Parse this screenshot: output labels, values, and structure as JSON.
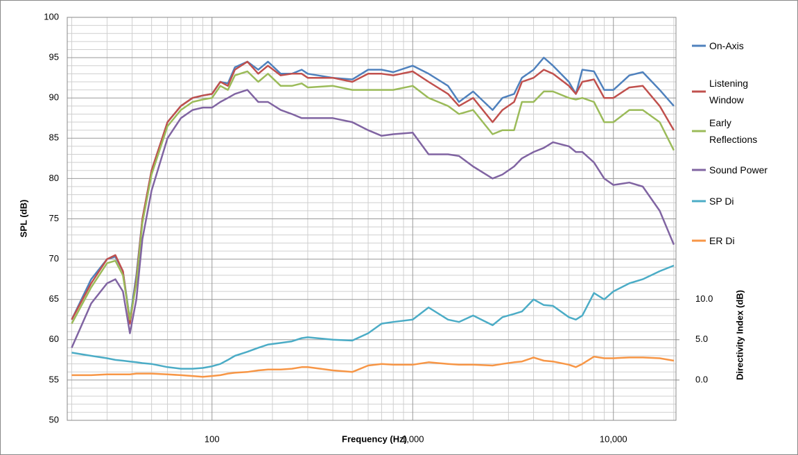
{
  "chart_data": {
    "type": "line",
    "xlabel": "Frequency (Hz)",
    "ylabel": "SPL (dB)",
    "y2label": "Directivity Index (dB)",
    "xscale": "log",
    "grid": true,
    "legend": "right",
    "x": [
      20,
      25,
      30,
      33,
      36,
      39,
      42,
      45,
      50,
      60,
      70,
      80,
      90,
      100,
      110,
      120,
      130,
      150,
      170,
      190,
      220,
      250,
      280,
      300,
      400,
      500,
      600,
      700,
      800,
      1000,
      1200,
      1500,
      1700,
      2000,
      2500,
      2800,
      3200,
      3500,
      4000,
      4500,
      5000,
      6000,
      6500,
      7000,
      8000,
      9000,
      10000,
      12000,
      14000,
      17000,
      20000
    ],
    "xlim": [
      19,
      20500
    ],
    "xticks": [
      100,
      {
        "value": 1000,
        "label": "1,000"
      },
      {
        "value": 10000,
        "label": "10,000"
      }
    ],
    "x_minor_ticks": [
      20,
      30,
      40,
      50,
      60,
      70,
      80,
      90,
      200,
      300,
      400,
      500,
      600,
      700,
      800,
      900,
      2000,
      3000,
      4000,
      5000,
      6000,
      7000,
      8000,
      9000,
      20000
    ],
    "ylim": [
      50,
      100
    ],
    "yticks": [
      50,
      55,
      60,
      65,
      70,
      75,
      80,
      85,
      90,
      95,
      100
    ],
    "y_minor_ticks": [
      51,
      52,
      53,
      54,
      56,
      57,
      58,
      59,
      61,
      62,
      63,
      64,
      66,
      67,
      68,
      69,
      71,
      72,
      73,
      74,
      76,
      77,
      78,
      79,
      81,
      82,
      83,
      84,
      86,
      87,
      88,
      89,
      91,
      92,
      93,
      94,
      96,
      97,
      98,
      99
    ],
    "y2lim": [
      -5,
      45
    ],
    "y2ticks": [
      {
        "value": 0,
        "label": "0.0"
      },
      {
        "value": 5,
        "label": "5.0"
      },
      {
        "value": 10,
        "label": "10.0"
      }
    ],
    "series": [
      {
        "name": "On-Axis",
        "color": "#4f81bd",
        "values": [
          62.5,
          67.5,
          70,
          70.3,
          68.5,
          62.5,
          68,
          75,
          81,
          87,
          89,
          90,
          90.3,
          90.5,
          92,
          91.8,
          93.8,
          94.5,
          93.5,
          94.5,
          93,
          93,
          93.5,
          93,
          92.5,
          92.3,
          93.5,
          93.5,
          93.2,
          94,
          93,
          91.5,
          89.5,
          90.8,
          88.5,
          90,
          90.5,
          92.5,
          93.5,
          95,
          94,
          92,
          90.5,
          93.5,
          93.3,
          91,
          91,
          92.8,
          93.2,
          91,
          89
        ]
      },
      {
        "name": "Listening Window",
        "color": "#c0504d",
        "values": [
          62.5,
          67,
          70,
          70.5,
          68.5,
          62,
          67.5,
          75,
          81,
          87,
          89,
          90,
          90.3,
          90.5,
          92,
          91.5,
          93.5,
          94.5,
          93,
          94,
          92.8,
          93,
          93,
          92.5,
          92.5,
          92,
          93,
          93,
          92.8,
          93.3,
          92,
          90.5,
          89,
          90,
          87,
          88.5,
          89.5,
          92,
          92.5,
          93.5,
          93,
          91.5,
          90.5,
          92,
          92.3,
          90,
          90,
          91.3,
          91.5,
          89,
          86
        ]
      },
      {
        "name": "Early Reflections",
        "color": "#9bbb59",
        "values": [
          62,
          66.5,
          69.5,
          69.8,
          68,
          62.5,
          67,
          74.5,
          80.5,
          86.5,
          88.5,
          89.5,
          89.8,
          90,
          91.5,
          91,
          92.8,
          93.3,
          92,
          93,
          91.5,
          91.5,
          91.8,
          91.3,
          91.5,
          91,
          91,
          91,
          91,
          91.5,
          90,
          89,
          88,
          88.5,
          85.5,
          86,
          86,
          89.5,
          89.5,
          90.8,
          90.8,
          90,
          89.8,
          90,
          89.5,
          87,
          87,
          88.5,
          88.5,
          87,
          83.5
        ]
      },
      {
        "name": "Sound Power",
        "color": "#8064a2",
        "values": [
          59,
          64.5,
          67,
          67.5,
          66,
          60.8,
          65,
          72.5,
          78.5,
          85,
          87.5,
          88.5,
          88.8,
          88.8,
          89.5,
          90,
          90.5,
          91,
          89.5,
          89.5,
          88.5,
          88,
          87.5,
          87.5,
          87.5,
          87,
          86,
          85.3,
          85.5,
          85.7,
          83,
          83,
          82.8,
          81.5,
          80,
          80.5,
          81.5,
          82.5,
          83.3,
          83.8,
          84.5,
          84,
          83.3,
          83.3,
          82,
          80,
          79.2,
          79.5,
          79,
          76,
          71.8
        ]
      },
      {
        "name": "SP Di",
        "color": "#4bacc6",
        "axis": "y2",
        "values": [
          3.4,
          3.0,
          2.7,
          2.5,
          2.4,
          2.3,
          2.2,
          2.1,
          2.0,
          1.6,
          1.4,
          1.4,
          1.5,
          1.7,
          2.0,
          2.5,
          3.0,
          3.5,
          4.0,
          4.4,
          4.6,
          4.8,
          5.2,
          5.3,
          5.0,
          4.9,
          5.8,
          7.0,
          7.2,
          7.5,
          9.0,
          7.5,
          7.2,
          8.0,
          6.8,
          7.8,
          8.2,
          8.5,
          10.0,
          9.3,
          9.2,
          7.8,
          7.5,
          8.0,
          10.8,
          10.0,
          11.0,
          12.0,
          12.5,
          13.5,
          14.2
        ]
      },
      {
        "name": "ER Di",
        "color": "#f79646",
        "axis": "y2",
        "values": [
          0.6,
          0.6,
          0.7,
          0.7,
          0.7,
          0.7,
          0.8,
          0.8,
          0.8,
          0.7,
          0.6,
          0.5,
          0.4,
          0.5,
          0.6,
          0.8,
          0.9,
          1.0,
          1.2,
          1.3,
          1.3,
          1.4,
          1.6,
          1.6,
          1.2,
          1.0,
          1.8,
          2.0,
          1.9,
          1.9,
          2.2,
          2.0,
          1.9,
          1.9,
          1.8,
          2.0,
          2.2,
          2.3,
          2.8,
          2.4,
          2.3,
          1.9,
          1.6,
          2.0,
          2.9,
          2.7,
          2.7,
          2.8,
          2.8,
          2.7,
          2.4
        ]
      }
    ]
  }
}
